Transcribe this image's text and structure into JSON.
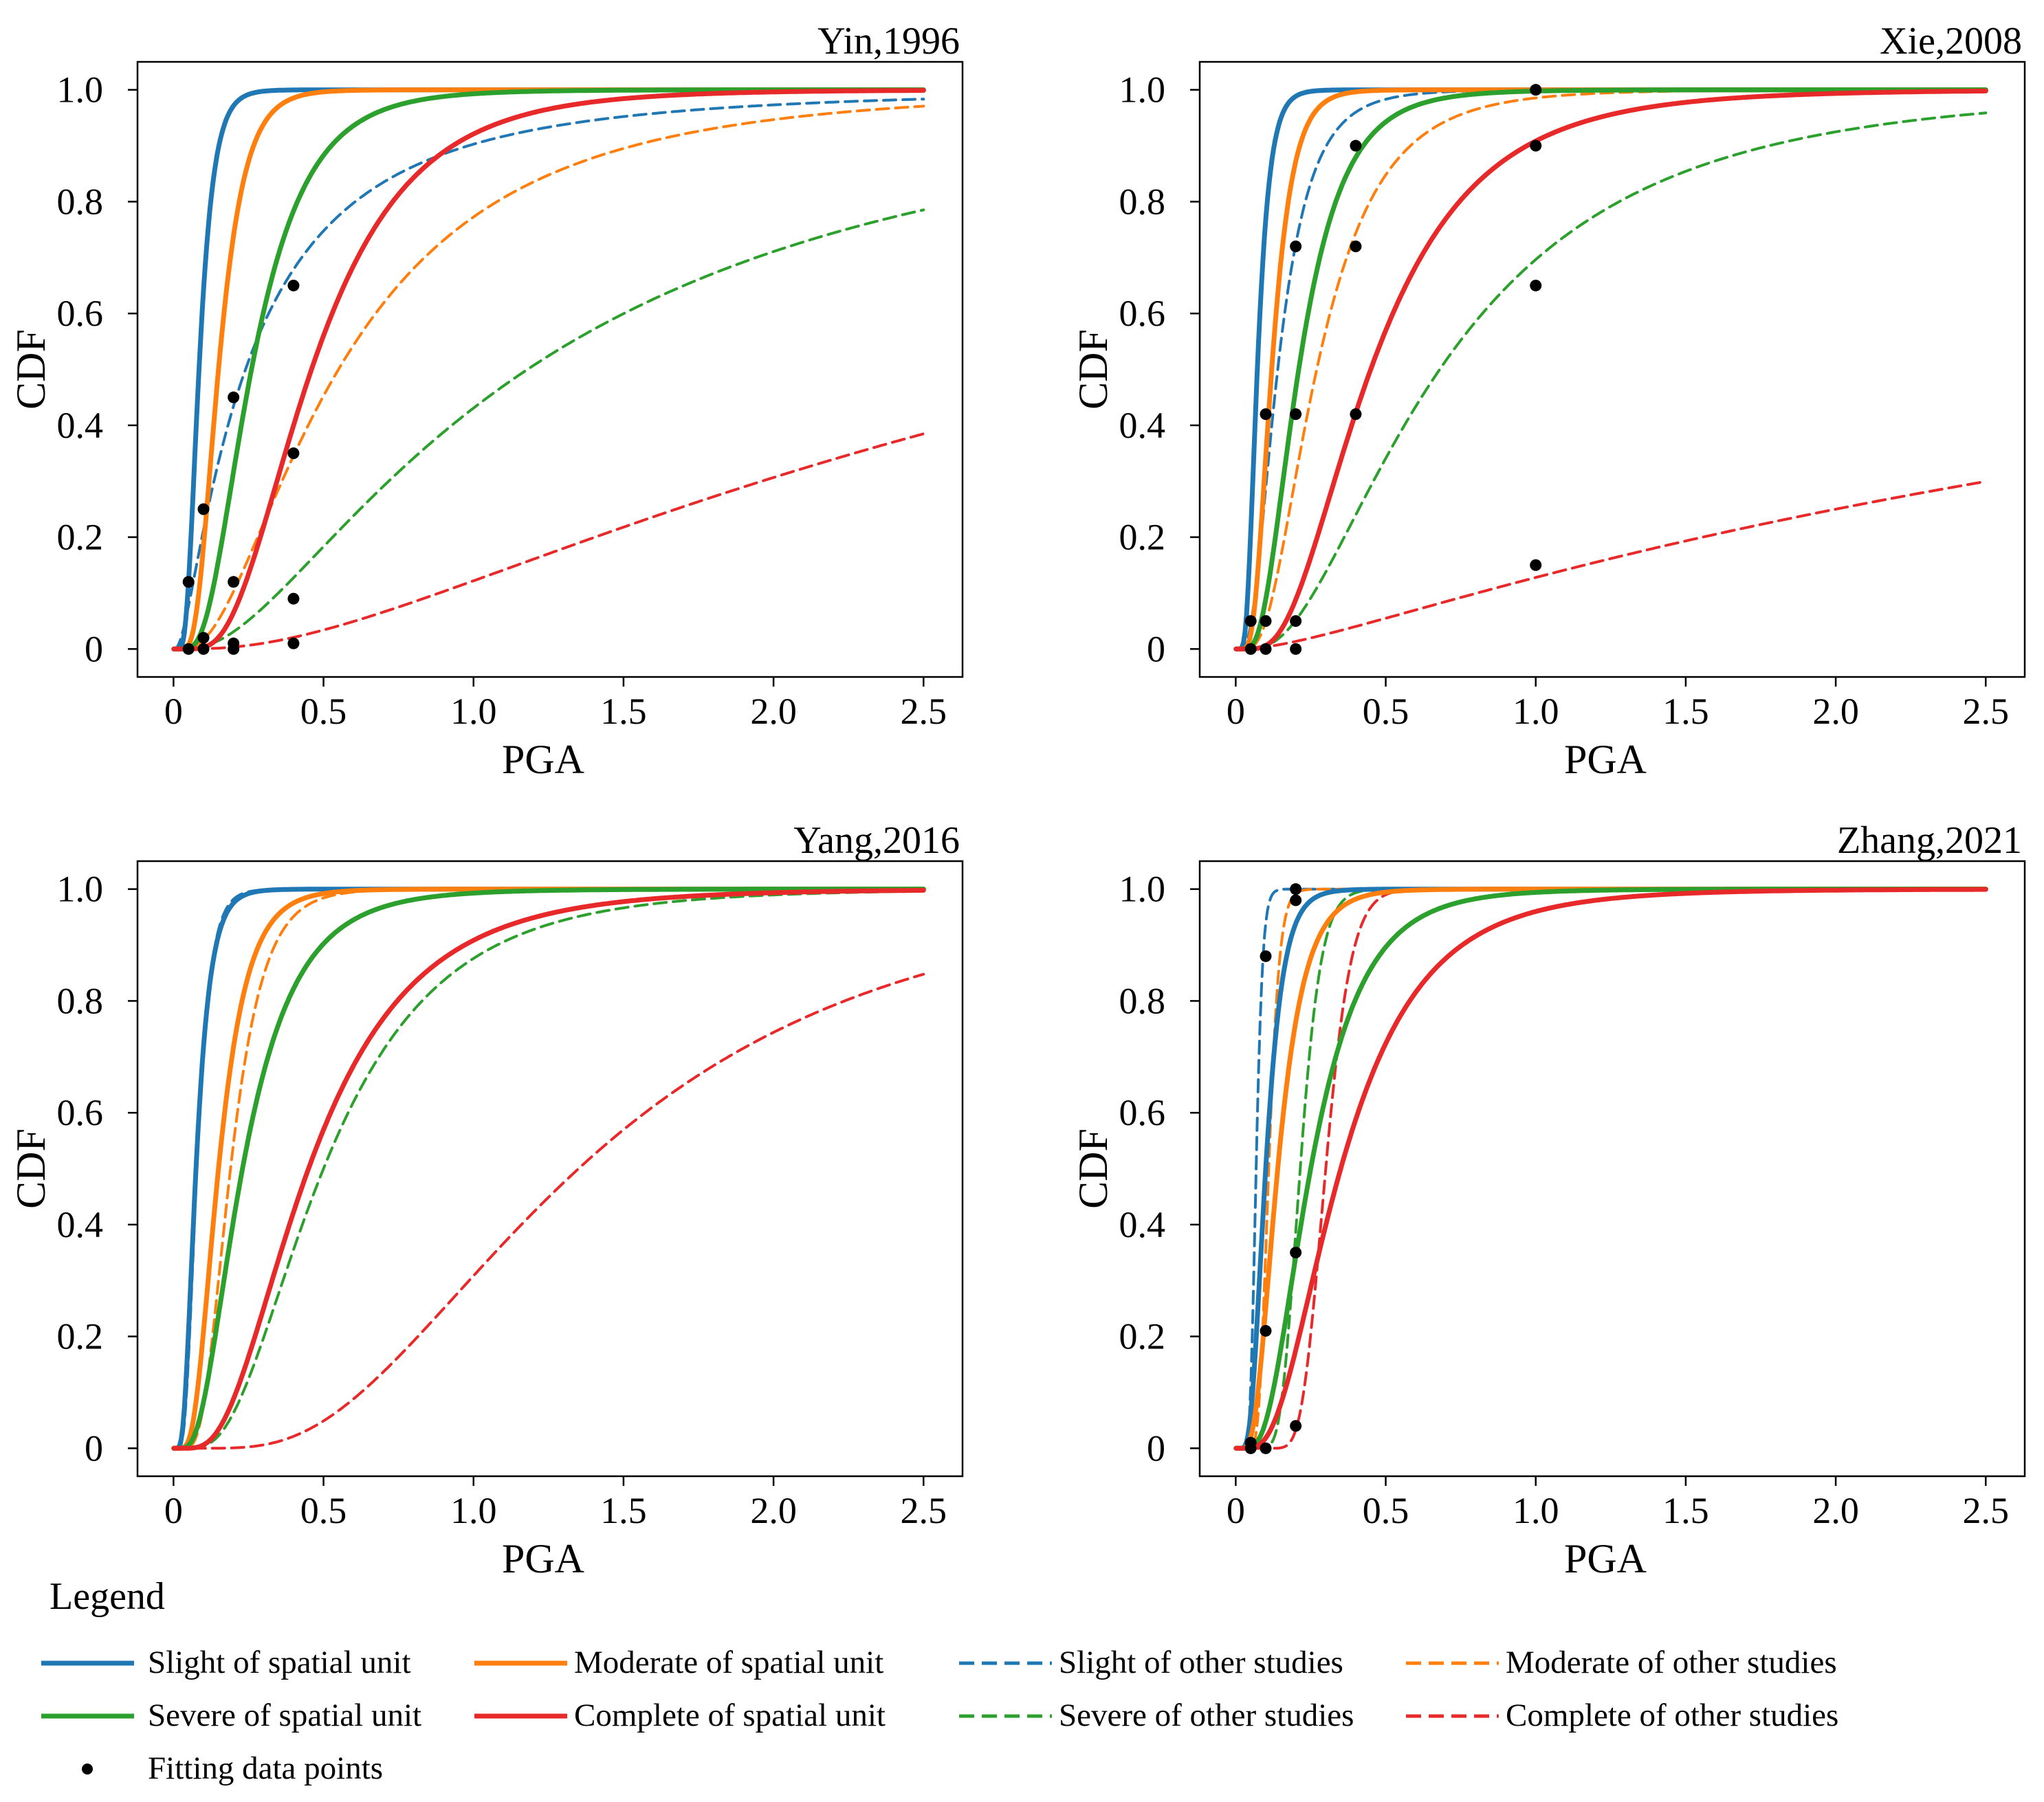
{
  "legend": {
    "title": "Legend",
    "entries": [
      {
        "key": "slight_unit",
        "label": "Slight of spatial unit"
      },
      {
        "key": "moderate_unit",
        "label": "Moderate of spatial unit"
      },
      {
        "key": "slight_other",
        "label": "Slight of other studies"
      },
      {
        "key": "moderate_other",
        "label": "Moderate of other studies"
      },
      {
        "key": "severe_unit",
        "label": "Severe of spatial unit"
      },
      {
        "key": "complete_unit",
        "label": "Complete of spatial unit"
      },
      {
        "key": "severe_other",
        "label": "Severe of other studies"
      },
      {
        "key": "complete_other",
        "label": "Complete of other studies"
      },
      {
        "key": "points",
        "label": "Fitting data points"
      }
    ]
  },
  "colors": {
    "slight": "#1f77b4",
    "moderate": "#ff7f0e",
    "severe": "#2ca02c",
    "complete": "#e8292a",
    "points": "#000000"
  },
  "chart_data": [
    {
      "type": "line",
      "title": "Yin,1996",
      "xlabel": "PGA",
      "ylabel": "CDF",
      "xlim": [
        -0.12,
        2.63
      ],
      "ylim": [
        -0.05,
        1.05
      ],
      "xticks": [
        0,
        0.5,
        1.0,
        1.5,
        2.0,
        2.5
      ],
      "xtick_labels": [
        "0",
        "0.5",
        "1.0",
        "1.5",
        "2.0",
        "2.5"
      ],
      "yticks": [
        0,
        0.2,
        0.4,
        0.6,
        0.8,
        1.0
      ],
      "ytick_labels": [
        "0",
        "0.2",
        "0.4",
        "0.6",
        "0.8",
        "1.0"
      ],
      "series": [
        {
          "key": "slight_unit",
          "name": "Slight of spatial unit",
          "style": "solid",
          "median": 0.085,
          "beta": 0.45
        },
        {
          "key": "moderate_unit",
          "name": "Moderate of spatial unit",
          "style": "solid",
          "median": 0.15,
          "beta": 0.45
        },
        {
          "key": "severe_unit",
          "name": "Severe of spatial unit",
          "style": "solid",
          "median": 0.26,
          "beta": 0.55
        },
        {
          "key": "complete_unit",
          "name": "Complete of spatial unit",
          "style": "solid",
          "median": 0.46,
          "beta": 0.55
        },
        {
          "key": "slight_other",
          "name": "Slight of other studies",
          "style": "dashed",
          "median": 0.24,
          "beta": 1.1
        },
        {
          "key": "moderate_other",
          "name": "Moderate of other studies",
          "style": "dashed",
          "median": 0.55,
          "beta": 0.8
        },
        {
          "key": "severe_other",
          "name": "Severe of other studies",
          "style": "dashed",
          "median": 1.18,
          "beta": 0.95
        },
        {
          "key": "complete_other",
          "name": "Complete of other studies",
          "style": "dashed",
          "median": 3.4,
          "beta": 1.05
        }
      ],
      "points": {
        "x": [
          0.05,
          0.05,
          0.1,
          0.1,
          0.1,
          0.2,
          0.2,
          0.2,
          0.2,
          0.4,
          0.4,
          0.4,
          0.4
        ],
        "y": [
          0.12,
          0.0,
          0.25,
          0.02,
          0.0,
          0.45,
          0.12,
          0.01,
          0.0,
          0.65,
          0.35,
          0.09,
          0.01
        ]
      }
    },
    {
      "type": "line",
      "title": "Xie,2008",
      "xlabel": "PGA",
      "ylabel": "CDF",
      "xlim": [
        -0.12,
        2.63
      ],
      "ylim": [
        -0.05,
        1.05
      ],
      "xticks": [
        0,
        0.5,
        1.0,
        1.5,
        2.0,
        2.5
      ],
      "xtick_labels": [
        "0",
        "0.5",
        "1.0",
        "1.5",
        "2.0",
        "2.5"
      ],
      "yticks": [
        0,
        0.2,
        0.4,
        0.6,
        0.8,
        1.0
      ],
      "ytick_labels": [
        "0",
        "0.2",
        "0.4",
        "0.6",
        "0.8",
        "1.0"
      ],
      "series": [
        {
          "key": "slight_unit",
          "name": "Slight of spatial unit",
          "style": "solid",
          "median": 0.072,
          "beta": 0.45
        },
        {
          "key": "moderate_unit",
          "name": "Moderate of spatial unit",
          "style": "solid",
          "median": 0.12,
          "beta": 0.45
        },
        {
          "key": "severe_unit",
          "name": "Severe of spatial unit",
          "style": "solid",
          "median": 0.21,
          "beta": 0.55
        },
        {
          "key": "complete_unit",
          "name": "Complete of spatial unit",
          "style": "solid",
          "median": 0.45,
          "beta": 0.6
        },
        {
          "key": "slight_other",
          "name": "Slight of other studies",
          "style": "dashed",
          "median": 0.14,
          "beta": 0.6
        },
        {
          "key": "moderate_other",
          "name": "Moderate of other studies",
          "style": "dashed",
          "median": 0.27,
          "beta": 0.6
        },
        {
          "key": "severe_other",
          "name": "Severe of other studies",
          "style": "dashed",
          "median": 0.68,
          "beta": 0.75
        },
        {
          "key": "complete_other",
          "name": "Complete of other studies",
          "style": "dashed",
          "median": 5.5,
          "beta": 1.5
        }
      ],
      "points": {
        "x": [
          0.05,
          0.05,
          0.1,
          0.1,
          0.1,
          0.2,
          0.2,
          0.2,
          0.2,
          0.4,
          0.4,
          0.4,
          1.0,
          1.0,
          1.0,
          1.0
        ],
        "y": [
          0.05,
          0.0,
          0.42,
          0.05,
          0.0,
          0.72,
          0.42,
          0.05,
          0.0,
          0.9,
          0.72,
          0.42,
          1.0,
          0.9,
          0.65,
          0.15
        ]
      }
    },
    {
      "type": "line",
      "title": "Yang,2016",
      "xlabel": "PGA",
      "ylabel": "CDF",
      "xlim": [
        -0.12,
        2.63
      ],
      "ylim": [
        -0.05,
        1.05
      ],
      "xticks": [
        0,
        0.5,
        1.0,
        1.5,
        2.0,
        2.5
      ],
      "xtick_labels": [
        "0",
        "0.5",
        "1.0",
        "1.5",
        "2.0",
        "2.5"
      ],
      "yticks": [
        0,
        0.2,
        0.4,
        0.6,
        0.8,
        1.0
      ],
      "ytick_labels": [
        "0",
        "0.2",
        "0.4",
        "0.6",
        "0.8",
        "1.0"
      ],
      "series": [
        {
          "key": "slight_unit",
          "name": "Slight of spatial unit",
          "style": "solid",
          "median": 0.075,
          "beta": 0.5
        },
        {
          "key": "moderate_unit",
          "name": "Moderate of spatial unit",
          "style": "solid",
          "median": 0.15,
          "beta": 0.5
        },
        {
          "key": "severe_unit",
          "name": "Severe of spatial unit",
          "style": "solid",
          "median": 0.23,
          "beta": 0.6
        },
        {
          "key": "complete_unit",
          "name": "Complete of spatial unit",
          "style": "solid",
          "median": 0.45,
          "beta": 0.6
        },
        {
          "key": "slight_other",
          "name": "Slight of other studies",
          "style": "dashed",
          "median": 0.078,
          "beta": 0.45
        },
        {
          "key": "moderate_other",
          "name": "Moderate of other studies",
          "style": "dashed",
          "median": 0.19,
          "beta": 0.45
        },
        {
          "key": "severe_other",
          "name": "Severe of other studies",
          "style": "dashed",
          "median": 0.5,
          "beta": 0.6
        },
        {
          "key": "complete_other",
          "name": "Complete of other studies",
          "style": "dashed",
          "median": 1.35,
          "beta": 0.6
        }
      ],
      "points": {
        "x": [],
        "y": []
      }
    },
    {
      "type": "line",
      "title": "Zhang,2021",
      "xlabel": "PGA",
      "ylabel": "CDF",
      "xlim": [
        -0.12,
        2.63
      ],
      "ylim": [
        -0.05,
        1.05
      ],
      "xticks": [
        0,
        0.5,
        1.0,
        1.5,
        2.0,
        2.5
      ],
      "xtick_labels": [
        "0",
        "0.5",
        "1.0",
        "1.5",
        "2.0",
        "2.5"
      ],
      "yticks": [
        0,
        0.2,
        0.4,
        0.6,
        0.8,
        1.0
      ],
      "ytick_labels": [
        "0",
        "0.2",
        "0.4",
        "0.6",
        "0.8",
        "1.0"
      ],
      "series": [
        {
          "key": "slight_unit",
          "name": "Slight of spatial unit",
          "style": "solid",
          "median": 0.1,
          "beta": 0.45
        },
        {
          "key": "moderate_unit",
          "name": "Moderate of spatial unit",
          "style": "solid",
          "median": 0.14,
          "beta": 0.5
        },
        {
          "key": "severe_unit",
          "name": "Severe of spatial unit",
          "style": "solid",
          "median": 0.25,
          "beta": 0.55
        },
        {
          "key": "complete_unit",
          "name": "Complete of spatial unit",
          "style": "solid",
          "median": 0.35,
          "beta": 0.6
        },
        {
          "key": "slight_other",
          "name": "Slight of other studies",
          "style": "dashed",
          "median": 0.068,
          "beta": 0.25
        },
        {
          "key": "moderate_other",
          "name": "Moderate of other studies",
          "style": "dashed",
          "median": 0.11,
          "beta": 0.25
        },
        {
          "key": "severe_other",
          "name": "Severe of other studies",
          "style": "dashed",
          "median": 0.215,
          "beta": 0.25
        },
        {
          "key": "complete_other",
          "name": "Complete of other studies",
          "style": "dashed",
          "median": 0.3,
          "beta": 0.22
        }
      ],
      "points": {
        "x": [
          0.05,
          0.05,
          0.1,
          0.1,
          0.1,
          0.2,
          0.2,
          0.2,
          0.2
        ],
        "y": [
          0.01,
          0.0,
          0.88,
          0.21,
          0.0,
          1.0,
          0.98,
          0.35,
          0.04
        ]
      }
    }
  ]
}
